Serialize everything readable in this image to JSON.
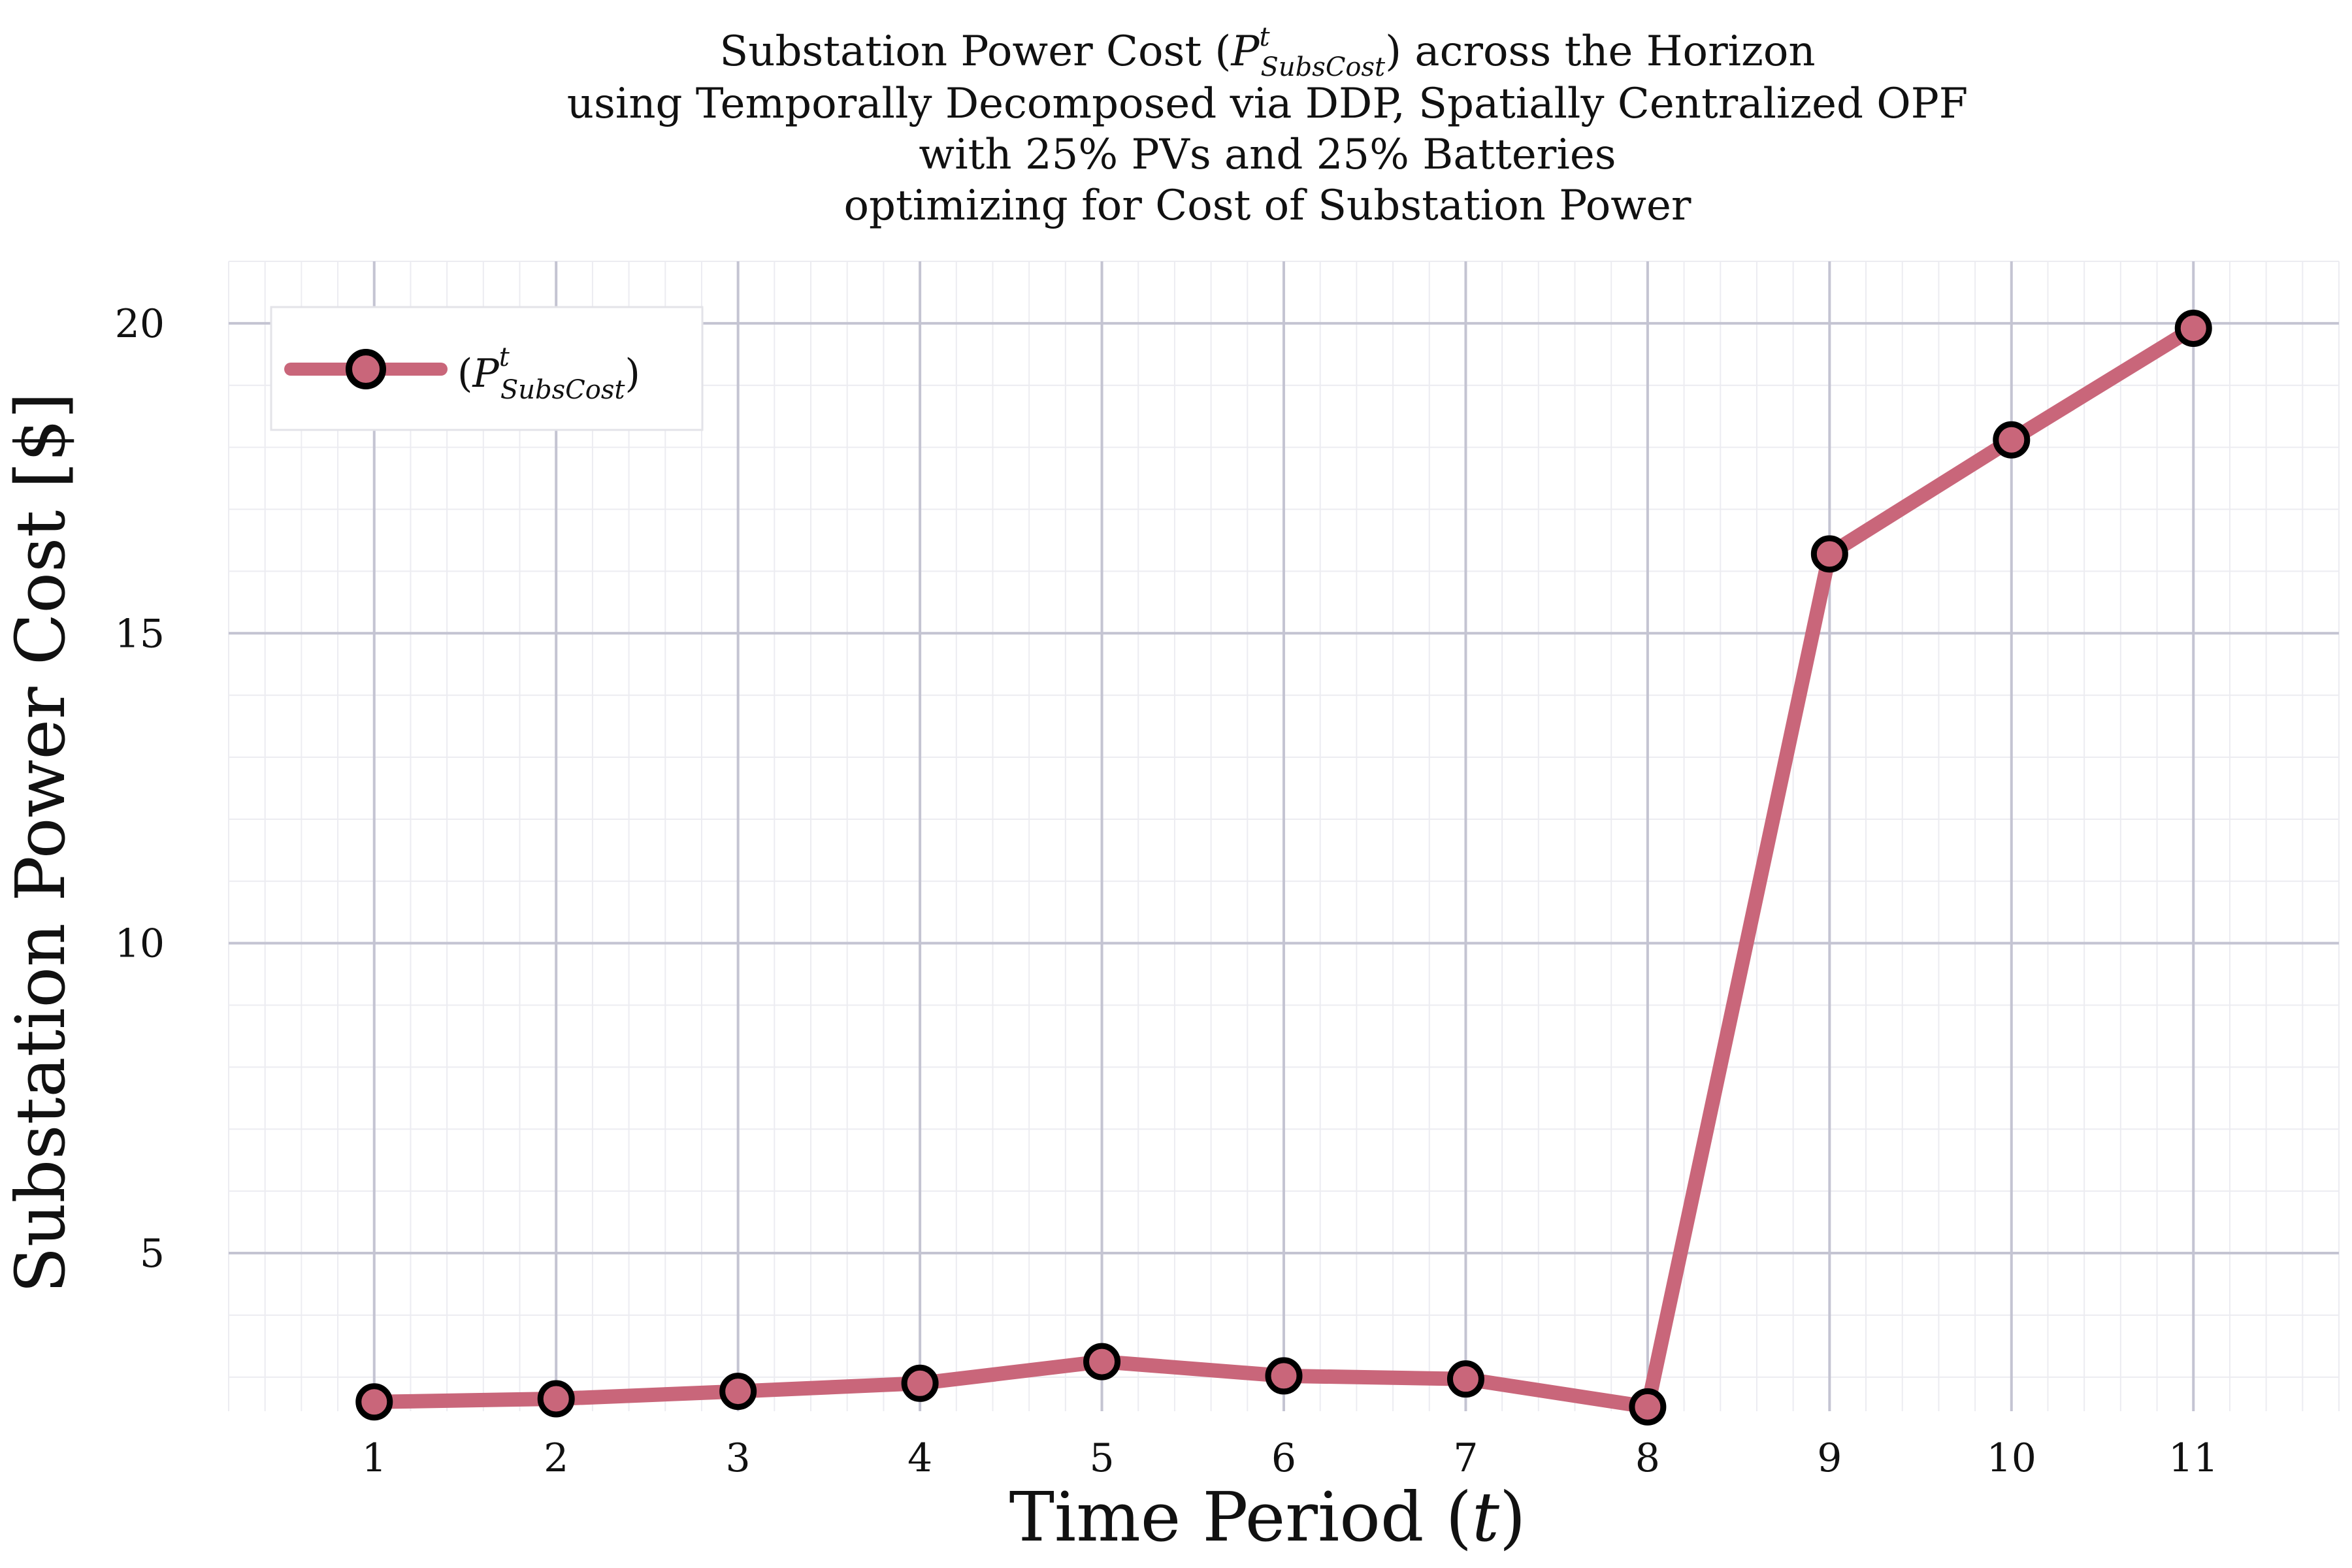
{
  "chart_data": {
    "type": "line",
    "title_lines": [
      "Substation Power Cost (P^t_SubsCost) across the Horizon",
      "using Temporally Decomposed via DDP, Spatially Centralized OPF",
      "with 25% PVs and 25% Batteries",
      "optimizing for Cost of Substation Power"
    ],
    "xlabel": "Time Period (t)",
    "ylabel": "Substation Power Cost [$]",
    "x": [
      1,
      2,
      3,
      4,
      5,
      6,
      7,
      8,
      9,
      10,
      11
    ],
    "series": [
      {
        "name": "(P^t_SubsCost)",
        "color": "#c9667a",
        "values": [
          2.6,
          2.65,
          2.77,
          2.9,
          3.25,
          3.02,
          2.97,
          2.52,
          16.28,
          18.12,
          19.92
        ]
      }
    ],
    "xlim": [
      0.2,
      11.8
    ],
    "ylim": [
      2.45,
      21.0
    ],
    "xticks": [
      1,
      2,
      3,
      4,
      5,
      6,
      7,
      8,
      9,
      10,
      11
    ],
    "yticks": [
      5,
      10,
      15,
      20
    ],
    "grid": true,
    "legend_position": "top-left"
  }
}
